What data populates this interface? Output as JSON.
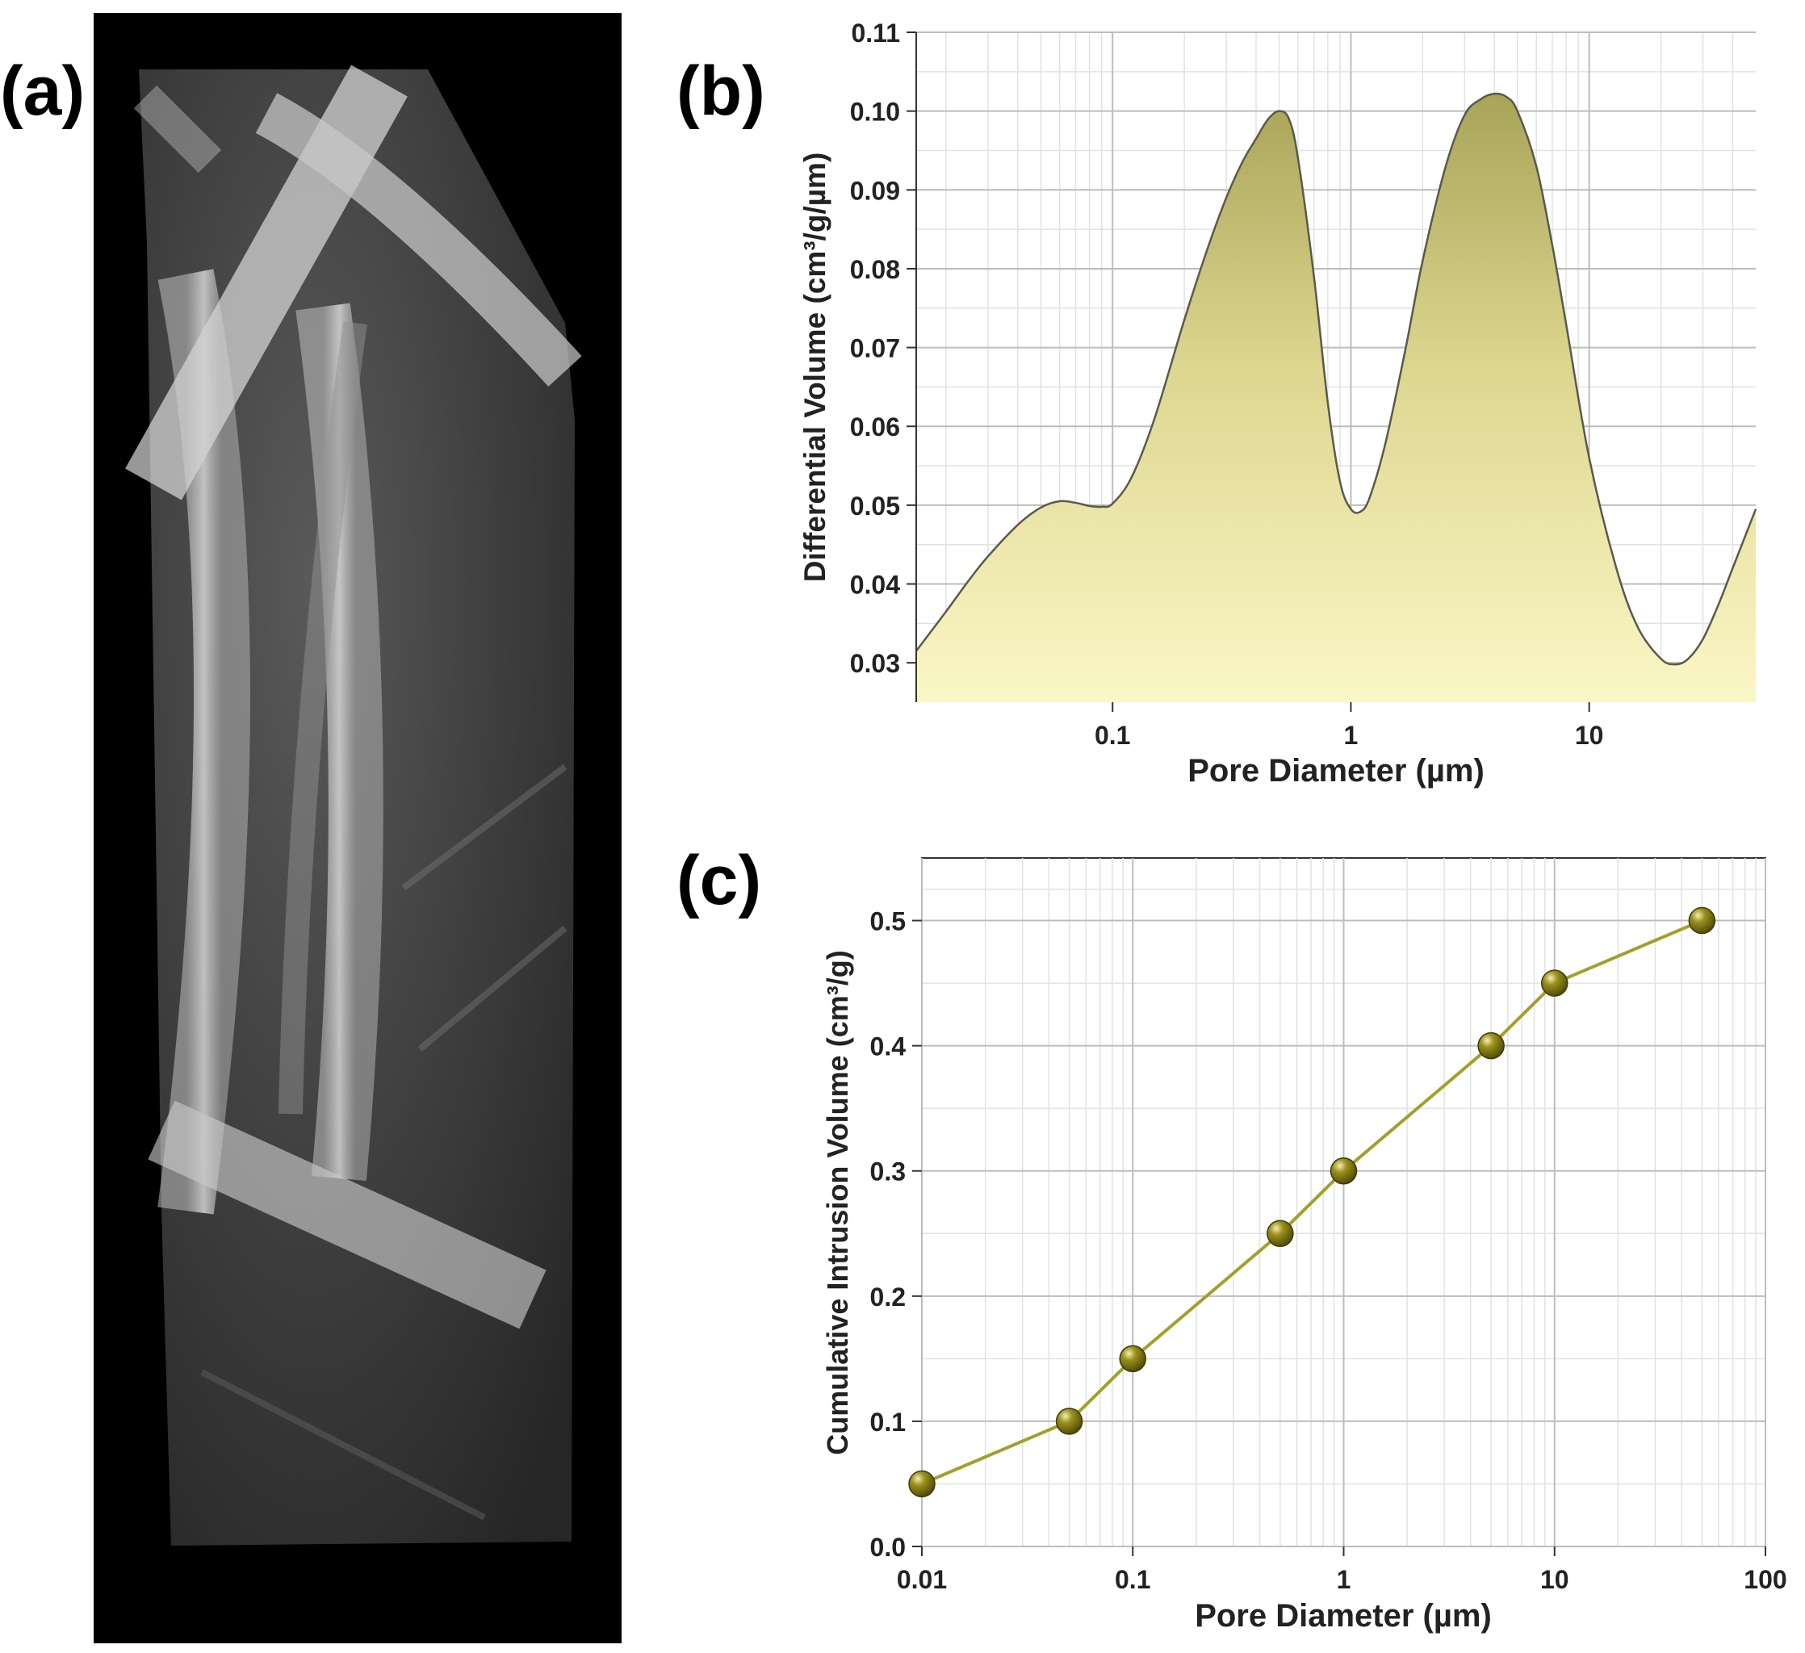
{
  "panels": {
    "a": "(a)",
    "b": "(b)",
    "c": "(c)"
  },
  "chart_data": [
    {
      "panel": "b",
      "type": "area",
      "xlabel": "Pore Diameter (µm)",
      "ylabel": "Differential Volume (cm³/g/µm)",
      "x_scale": "log",
      "xlim": [
        0.015,
        50
      ],
      "ylim": [
        0.025,
        0.11
      ],
      "xticks": [
        "0.1",
        "1",
        "10"
      ],
      "xtick_values": [
        0.1,
        1,
        10
      ],
      "yticks": [
        "0.03",
        "0.04",
        "0.05",
        "0.06",
        "0.07",
        "0.08",
        "0.09",
        "0.10",
        "0.11"
      ],
      "ytick_values": [
        0.03,
        0.04,
        0.05,
        0.06,
        0.07,
        0.08,
        0.09,
        0.1,
        0.11
      ],
      "grid": true,
      "fill_color": "#f3efb4",
      "line_color": "#5a5a4a",
      "x": [
        0.015,
        0.02,
        0.025,
        0.03,
        0.04,
        0.05,
        0.06,
        0.07,
        0.08,
        0.09,
        0.1,
        0.12,
        0.15,
        0.2,
        0.25,
        0.3,
        0.35,
        0.4,
        0.45,
        0.5,
        0.55,
        0.6,
        0.7,
        0.8,
        0.9,
        1.0,
        1.1,
        1.2,
        1.4,
        1.7,
        2.0,
        2.5,
        3.0,
        3.5,
        4.0,
        4.5,
        5.0,
        6.0,
        7.0,
        8.0,
        10.0,
        13.0,
        16.0,
        20.0,
        23.0,
        26.0,
        30.0,
        35.0,
        40.0,
        50.0
      ],
      "y": [
        0.0315,
        0.0365,
        0.0405,
        0.0435,
        0.0475,
        0.0497,
        0.0505,
        0.0503,
        0.0499,
        0.0498,
        0.0502,
        0.0535,
        0.061,
        0.0735,
        0.0825,
        0.089,
        0.0935,
        0.0965,
        0.099,
        0.1,
        0.099,
        0.094,
        0.079,
        0.063,
        0.053,
        0.0495,
        0.0492,
        0.051,
        0.058,
        0.07,
        0.081,
        0.093,
        0.0995,
        0.1015,
        0.1022,
        0.1018,
        0.1,
        0.093,
        0.083,
        0.073,
        0.056,
        0.042,
        0.0345,
        0.0305,
        0.0298,
        0.0305,
        0.033,
        0.0375,
        0.042,
        0.0495
      ]
    },
    {
      "panel": "c",
      "type": "line",
      "xlabel": "Pore Diameter (µm)",
      "ylabel": "Cumulative Intrusion Volume (cm³/g)",
      "x_scale": "log",
      "xlim": [
        0.01,
        100
      ],
      "ylim": [
        0.0,
        0.55
      ],
      "xticks": [
        "0.01",
        "0.1",
        "1",
        "10",
        "100"
      ],
      "xtick_values": [
        0.01,
        0.1,
        1,
        10,
        100
      ],
      "yticks": [
        "0.0",
        "0.1",
        "0.2",
        "0.3",
        "0.4",
        "0.5"
      ],
      "ytick_values": [
        0.0,
        0.1,
        0.2,
        0.3,
        0.4,
        0.5
      ],
      "grid": true,
      "line_color": "#a3a02a",
      "marker_color": "#7d7414",
      "x": [
        0.01,
        0.05,
        0.1,
        0.5,
        1,
        5,
        10,
        50
      ],
      "y": [
        0.05,
        0.1,
        0.15,
        0.25,
        0.3,
        0.4,
        0.45,
        0.5
      ]
    }
  ]
}
